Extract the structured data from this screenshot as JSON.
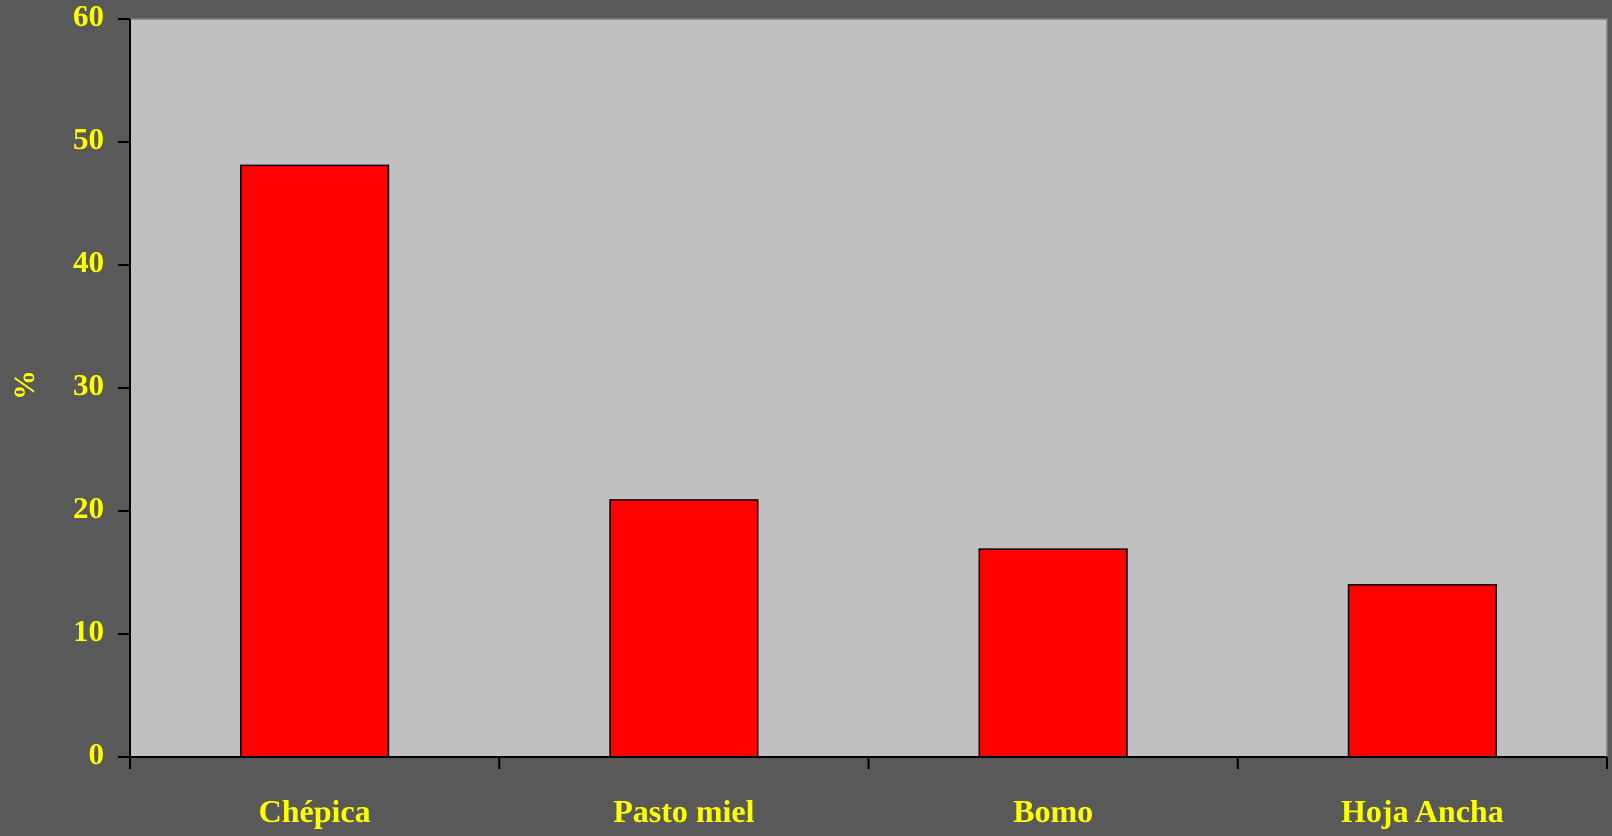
{
  "chart_data": {
    "type": "bar",
    "categories": [
      "Chépica",
      "Pasto miel",
      "Bomo",
      "Hoja Ancha"
    ],
    "values": [
      48.1,
      20.9,
      16.9,
      14.0
    ],
    "title": "",
    "xlabel": "",
    "ylabel": "%",
    "ylim": [
      0,
      60
    ],
    "yticks": [
      0,
      10,
      20,
      30,
      40,
      50,
      60
    ],
    "grid": false,
    "legend": "none"
  },
  "colors": {
    "background": "#595959",
    "plot_area": "#c0c0c0",
    "bar_fill": "#ff0000",
    "text": "#ffff00",
    "axis": "#000000"
  }
}
